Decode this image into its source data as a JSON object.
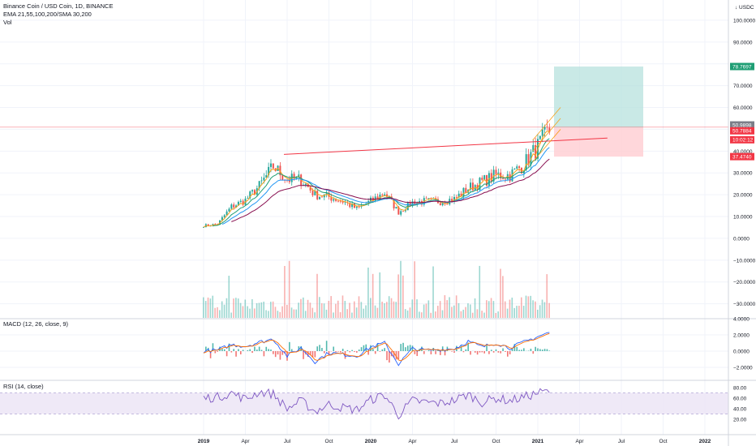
{
  "header": {
    "symbol_line": "Binance Coin / USD Coin, 1D, BINANCE",
    "ma_line": "EMA 21,55,100,200/SMA 30,200",
    "vol_line": "Vol"
  },
  "price_axis": {
    "unit_label": "USDC",
    "ticks": [
      "100.0000",
      "90.0000",
      "70.0000",
      "60.0000",
      "40.0000",
      "30.0000",
      "20.0000",
      "10.0000",
      "0.0000",
      "−10.0000",
      "−20.0000",
      "−30.0000"
    ],
    "tags": [
      {
        "text": "78.7697",
        "color": "#1e9e74"
      },
      {
        "text": "50.9898",
        "color": "#7b7e88"
      },
      {
        "text": "50.7884",
        "color": "#f23645"
      },
      {
        "text": "10:02:12",
        "color": "#f23645"
      },
      {
        "text": "37.4740",
        "color": "#f23645"
      }
    ]
  },
  "macd_panel": {
    "label": "MACD (12, 26, close, 9)",
    "ticks": [
      "4.0000",
      "2.0000",
      "0.0000",
      "−2.0000"
    ]
  },
  "rsi_panel": {
    "label": "RSI (14, close)",
    "ticks": [
      "80.00",
      "60.00",
      "40.00",
      "20.00"
    ]
  },
  "time_axis": {
    "labels": [
      "2019",
      "Apr",
      "Jul",
      "Oct",
      "2020",
      "Apr",
      "Jul",
      "Oct",
      "2021",
      "Apr",
      "Jul",
      "Oct",
      "2022"
    ],
    "bold": [
      "2019",
      "2020",
      "2021",
      "2022"
    ]
  },
  "colors": {
    "up": "#26a69a",
    "down": "#ef5350",
    "ema21": "#f7a21b",
    "ema55": "#1e9e74",
    "ema100": "#2196f3",
    "ema200": "#880e4f",
    "sma": "#e91e63",
    "trendline": "#f23645",
    "target_zone": "#b2dfdb",
    "stop_zone": "#ffcdd2",
    "macd_line": "#2962ff",
    "signal_line": "#ff6d00",
    "rsi_line": "#7e57c2",
    "rsi_band": "#ede7f6"
  },
  "chart_data": {
    "type": "line",
    "title": "Binance Coin / USD Coin, 1D, BINANCE",
    "xlabel": "",
    "ylabel": "USDC",
    "ylim": [
      -33,
      105
    ],
    "x": [
      "2019-01",
      "2019-02",
      "2019-03",
      "2019-04",
      "2019-05",
      "2019-06",
      "2019-07",
      "2019-08",
      "2019-09",
      "2019-10",
      "2019-11",
      "2019-12",
      "2020-01",
      "2020-02",
      "2020-03",
      "2020-04",
      "2020-05",
      "2020-06",
      "2020-07",
      "2020-08",
      "2020-09",
      "2020-10",
      "2020-11",
      "2020-12",
      "2021-01",
      "2021-02"
    ],
    "series": [
      {
        "name": "close",
        "values": [
          5.8,
          6.5,
          14.5,
          17.5,
          24,
          33,
          27,
          27,
          20,
          19,
          17,
          13.5,
          17,
          21,
          12,
          16.5,
          17,
          17,
          18,
          23,
          26,
          29,
          29,
          34,
          42,
          51
        ]
      }
    ],
    "trade_zone": {
      "target": 78.7697,
      "entry": 50.7884,
      "stop": 37.474
    },
    "macd": {
      "values": [
        0.0,
        0.1,
        0.8,
        0.6,
        1.1,
        1.5,
        -0.6,
        0.4,
        -1.3,
        -0.2,
        -0.4,
        -0.6,
        0.5,
        1.0,
        -1.6,
        0.3,
        0.1,
        0.2,
        0.3,
        1.2,
        0.5,
        1.0,
        0.4,
        1.1,
        1.8,
        2.4
      ],
      "ylim": [
        -3,
        4
      ]
    },
    "rsi": {
      "values": [
        60,
        62,
        70,
        58,
        72,
        68,
        40,
        55,
        35,
        48,
        42,
        38,
        57,
        66,
        28,
        55,
        52,
        50,
        56,
        67,
        52,
        60,
        55,
        62,
        70,
        74
      ],
      "ylim": [
        0,
        100
      ],
      "band": [
        30,
        70
      ]
    }
  }
}
